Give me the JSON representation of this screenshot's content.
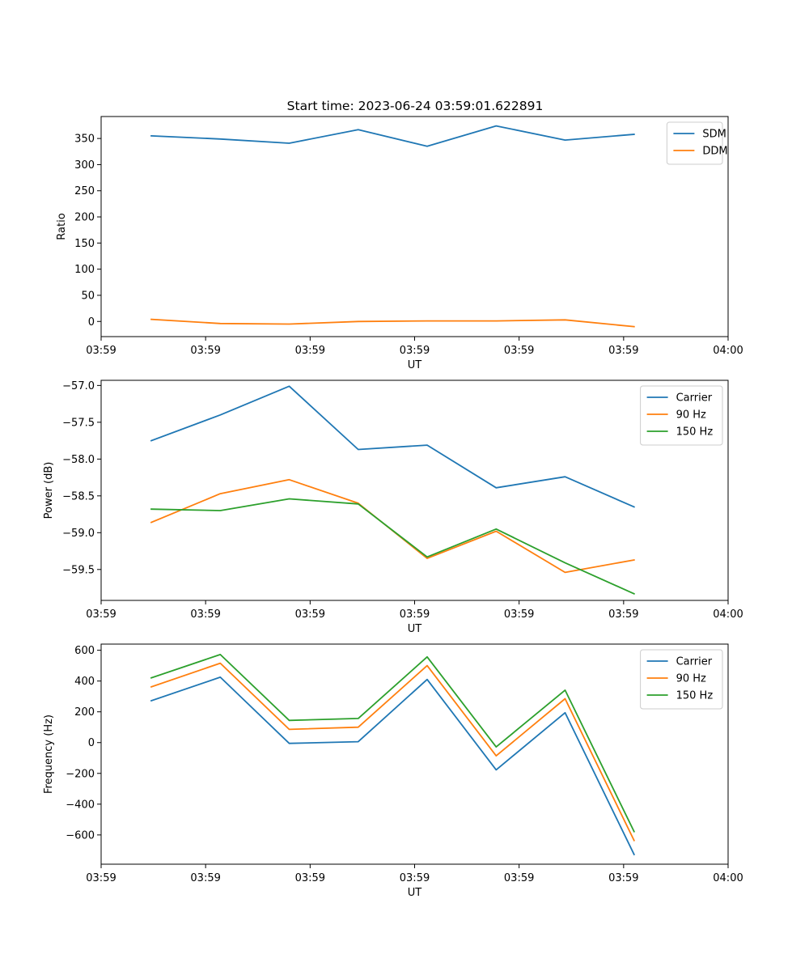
{
  "figure_title": "Start time: 2023-06-24 03:59:01.622891",
  "chart_data": [
    {
      "type": "line",
      "title": "Start time: 2023-06-24 03:59:01.622891",
      "xlabel": "UT",
      "ylabel": "Ratio",
      "xlim": [
        0,
        2.0
      ],
      "x": [
        0.16,
        0.38,
        0.6,
        0.82,
        1.04,
        1.26,
        1.48,
        1.7
      ],
      "xticks": [
        0,
        0.3333,
        0.6667,
        1.0,
        1.3333,
        1.6667,
        2.0
      ],
      "xtick_labels": [
        "03:59",
        "03:59",
        "03:59",
        "03:59",
        "03:59",
        "03:59",
        "04:00"
      ],
      "ylim": [
        -29,
        392
      ],
      "yticks": [
        0,
        50,
        100,
        150,
        200,
        250,
        300,
        350
      ],
      "ytick_labels": [
        "0",
        "50",
        "100",
        "150",
        "200",
        "250",
        "300",
        "350"
      ],
      "legend": "top-right",
      "series": [
        {
          "name": "SDM",
          "color": "#1f77b4",
          "values": [
            355,
            349,
            341,
            367,
            335,
            374,
            347,
            358
          ]
        },
        {
          "name": "DDM",
          "color": "#ff7f0e",
          "values": [
            4,
            -4,
            -5,
            0,
            1,
            1,
            3,
            -10
          ]
        }
      ]
    },
    {
      "type": "line",
      "xlabel": "UT",
      "ylabel": "Power (dB)",
      "xlim": [
        0,
        2.0
      ],
      "x": [
        0.16,
        0.38,
        0.6,
        0.82,
        1.04,
        1.26,
        1.48,
        1.7
      ],
      "xticks": [
        0,
        0.3333,
        0.6667,
        1.0,
        1.3333,
        1.6667,
        2.0
      ],
      "xtick_labels": [
        "03:59",
        "03:59",
        "03:59",
        "03:59",
        "03:59",
        "03:59",
        "04:00"
      ],
      "ylim": [
        -59.92,
        -56.93
      ],
      "yticks": [
        -59.5,
        -59.0,
        -58.5,
        -58.0,
        -57.5,
        -57.0
      ],
      "ytick_labels": [
        "−59.5",
        "−59.0",
        "−58.5",
        "−58.0",
        "−57.5",
        "−57.0"
      ],
      "legend": "top-right",
      "series": [
        {
          "name": "Carrier",
          "color": "#1f77b4",
          "values": [
            -57.75,
            -57.4,
            -57.01,
            -57.87,
            -57.81,
            -58.39,
            -58.24,
            -58.65
          ]
        },
        {
          "name": "90 Hz",
          "color": "#ff7f0e",
          "values": [
            -58.86,
            -58.47,
            -58.28,
            -58.6,
            -59.35,
            -58.98,
            -59.54,
            -59.37
          ]
        },
        {
          "name": "150 Hz",
          "color": "#2ca02c",
          "values": [
            -58.68,
            -58.7,
            -58.54,
            -58.61,
            -59.33,
            -58.95,
            -59.41,
            -59.83
          ]
        }
      ]
    },
    {
      "type": "line",
      "xlabel": "UT",
      "ylabel": "Frequency (Hz)",
      "xlim": [
        0,
        2.0
      ],
      "x": [
        0.16,
        0.38,
        0.6,
        0.82,
        1.04,
        1.26,
        1.48,
        1.7
      ],
      "xticks": [
        0,
        0.3333,
        0.6667,
        1.0,
        1.3333,
        1.6667,
        2.0
      ],
      "xtick_labels": [
        "03:59",
        "03:59",
        "03:59",
        "03:59",
        "03:59",
        "03:59",
        "04:00"
      ],
      "ylim": [
        -790,
        640
      ],
      "yticks": [
        -600,
        -400,
        -200,
        0,
        200,
        400,
        600
      ],
      "ytick_labels": [
        "−600",
        "−400",
        "−200",
        "0",
        "200",
        "400",
        "600"
      ],
      "legend": "top-right",
      "series": [
        {
          "name": "Carrier",
          "color": "#1f77b4",
          "values": [
            272,
            425,
            -5,
            6,
            410,
            -177,
            194,
            -727
          ]
        },
        {
          "name": "90 Hz",
          "color": "#ff7f0e",
          "values": [
            362,
            516,
            86,
            100,
            500,
            -86,
            285,
            -636
          ]
        },
        {
          "name": "150 Hz",
          "color": "#2ca02c",
          "values": [
            421,
            572,
            144,
            157,
            557,
            -28,
            341,
            -578
          ]
        }
      ]
    }
  ]
}
